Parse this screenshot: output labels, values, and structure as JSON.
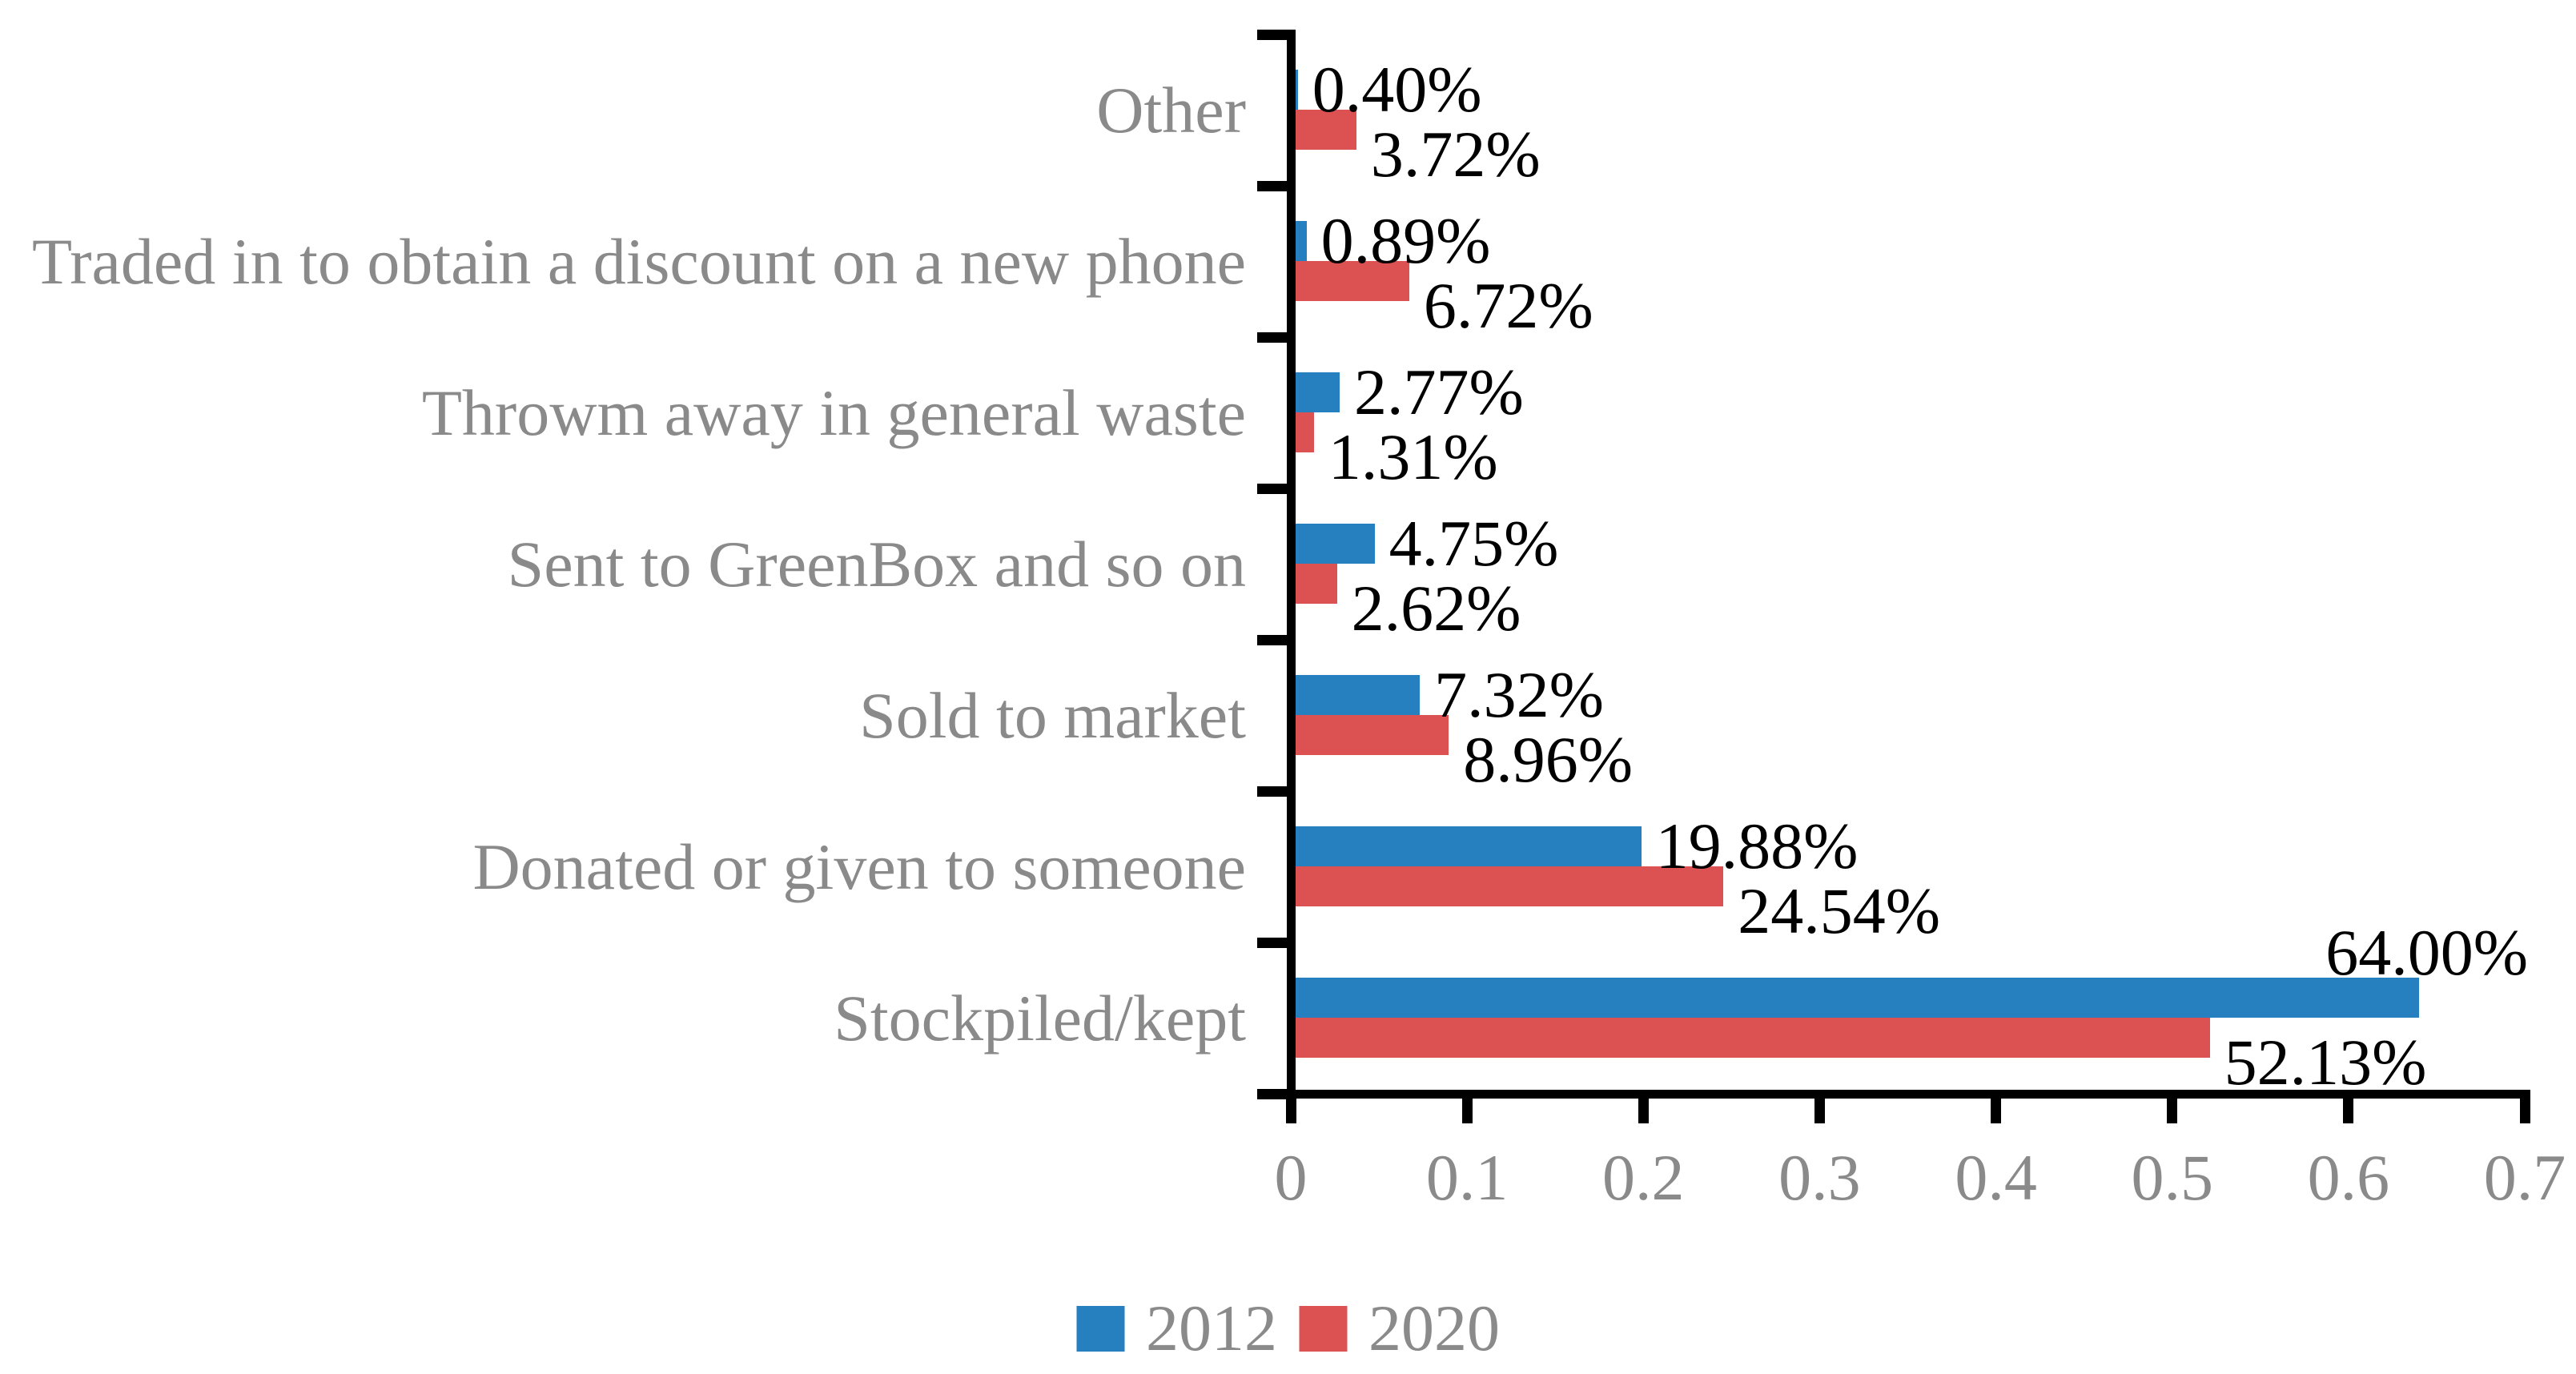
{
  "chart_data": {
    "type": "bar",
    "orientation": "horizontal",
    "title": "",
    "xlabel": "",
    "ylabel": "",
    "categories": [
      "Other",
      "Traded in to obtain a discount on a new phone",
      "Throwm away in general waste",
      "Sent to GreenBox and so on",
      "Sold to market",
      "Donated or given to someone",
      "Stockpiled/kept"
    ],
    "series": [
      {
        "name": "2012",
        "color": "#2680C0",
        "values_percent": [
          0.4,
          0.89,
          2.77,
          4.75,
          7.32,
          19.88,
          64.0
        ],
        "labels": [
          "0.40%",
          "0.89%",
          "2.77%",
          "4.75%",
          "7.32%",
          "19.88%",
          "64.00%"
        ]
      },
      {
        "name": "2020",
        "color": "#DC5151",
        "values_percent": [
          3.72,
          6.72,
          1.31,
          2.62,
          8.96,
          24.54,
          52.13
        ],
        "labels": [
          "3.72%",
          "6.72%",
          "1.31%",
          "2.62%",
          "8.96%",
          "24.54%",
          "52.13%"
        ]
      }
    ],
    "value_axis": {
      "min": 0,
      "max": 0.7,
      "tick_labels": [
        "0",
        "0.1",
        "0.2",
        "0.3",
        "0.4",
        "0.5",
        "0.6",
        "0.7"
      ],
      "tick_values": [
        0,
        0.1,
        0.2,
        0.3,
        0.4,
        0.5,
        0.6,
        0.7
      ]
    },
    "grid": false,
    "legend": {
      "position": "bottom",
      "entries": [
        "2012",
        "2020"
      ]
    }
  },
  "colors": {
    "background": "#FFFFFF",
    "axis": "#000000",
    "category_label_text": "#8A8A8A",
    "axis_tick_label_text": "#8A8A8A",
    "value_label_text": "#000000",
    "legend_text": "#8A8A8A",
    "series_2012": "#2680C0",
    "series_2020": "#DC5151"
  }
}
